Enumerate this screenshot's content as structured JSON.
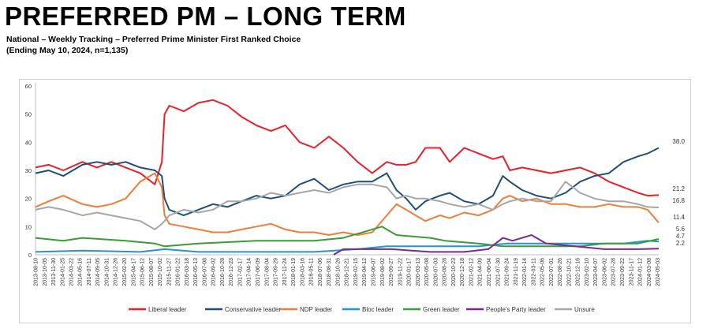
{
  "header": {
    "title": "PREFERRED PM – LONG TERM",
    "subtitle_line1": "National – Weekly Tracking – Preferred Prime Minister First Ranked Choice",
    "subtitle_line2": "(Ending May 10, 2024, n=1,135)"
  },
  "chart_data": {
    "type": "line",
    "ylim": [
      0,
      60
    ],
    "yticks": [
      0,
      10,
      20,
      30,
      40,
      50,
      60
    ],
    "grid": false,
    "legend_position": "bottom",
    "x_start": "2013-08-10",
    "x_end": "2024-05-10",
    "x_tick_labels": [
      "2013-08-10",
      "2013-10-05",
      "2013-11-30",
      "2014-01-25",
      "2014-03-22",
      "2014-05-16",
      "2014-07-11",
      "2014-09-05",
      "2014-10-31",
      "2014-12-26",
      "2015-02-20",
      "2015-04-17",
      "2015-06-12",
      "2015-08-07",
      "2015-10-02",
      "2015-11-27",
      "2016-01-22",
      "2016-03-18",
      "2016-05-13",
      "2016-07-08",
      "2016-09-02",
      "2016-10-28",
      "2016-12-23",
      "2017-02-17",
      "2017-04-14",
      "2017-06-09",
      "2017-08-04",
      "2017-09-29",
      "2017-11-24",
      "2018-01-19",
      "2018-03-16",
      "2018-05-11",
      "2018-07-06",
      "2018-08-31",
      "2018-10-26",
      "2018-12-21",
      "2019-02-15",
      "2019-04-12",
      "2019-06-07",
      "2019-08-02",
      "2019-09-27",
      "2019-11-22",
      "2020-01-17",
      "2020-03-13",
      "2020-05-08",
      "2020-07-03",
      "2020-08-28",
      "2020-10-23",
      "2020-12-18",
      "2021-02-12",
      "2021-04-09",
      "2021-06-04",
      "2021-07-30",
      "2021-09-24",
      "2021-11-19",
      "2022-01-14",
      "2022-03-11",
      "2022-05-06",
      "2022-07-01",
      "2022-08-26",
      "2022-10-21",
      "2022-12-16",
      "2023-02-10",
      "2023-04-07",
      "2023-06-02",
      "2023-07-28",
      "2023-09-22",
      "2023-11-17",
      "2024-01-12",
      "2024-03-08",
      "2024-05-03"
    ],
    "end_labels": [
      "38.0",
      "21.2",
      "16.8",
      "11.4",
      "5.6",
      "4.7",
      "2.2"
    ],
    "series": [
      {
        "name": "Liberal leader",
        "color": "#e8202a",
        "points": [
          [
            "2013-08-10",
            31
          ],
          [
            "2013-11-01",
            32
          ],
          [
            "2014-02-01",
            30
          ],
          [
            "2014-06-01",
            33
          ],
          [
            "2014-09-01",
            31
          ],
          [
            "2014-12-01",
            33
          ],
          [
            "2015-03-01",
            31
          ],
          [
            "2015-06-01",
            29
          ],
          [
            "2015-09-01",
            25
          ],
          [
            "2015-10-15",
            33
          ],
          [
            "2015-11-01",
            50
          ],
          [
            "2015-12-01",
            53
          ],
          [
            "2016-03-01",
            51
          ],
          [
            "2016-06-01",
            54
          ],
          [
            "2016-09-01",
            55
          ],
          [
            "2016-12-01",
            53
          ],
          [
            "2017-03-01",
            49
          ],
          [
            "2017-06-01",
            46
          ],
          [
            "2017-09-01",
            44
          ],
          [
            "2017-12-01",
            46
          ],
          [
            "2018-03-01",
            40
          ],
          [
            "2018-06-01",
            38
          ],
          [
            "2018-09-01",
            42
          ],
          [
            "2018-12-01",
            38
          ],
          [
            "2019-03-01",
            33
          ],
          [
            "2019-06-01",
            29
          ],
          [
            "2019-09-01",
            33
          ],
          [
            "2019-11-01",
            32
          ],
          [
            "2020-01-01",
            32
          ],
          [
            "2020-03-01",
            33
          ],
          [
            "2020-05-01",
            38
          ],
          [
            "2020-08-01",
            38
          ],
          [
            "2020-10-01",
            33
          ],
          [
            "2021-01-01",
            38
          ],
          [
            "2021-04-01",
            36
          ],
          [
            "2021-07-01",
            34
          ],
          [
            "2021-09-01",
            35
          ],
          [
            "2021-10-15",
            30
          ],
          [
            "2022-01-01",
            31
          ],
          [
            "2022-04-01",
            30
          ],
          [
            "2022-07-01",
            29
          ],
          [
            "2022-10-01",
            30
          ],
          [
            "2023-01-01",
            31
          ],
          [
            "2023-04-01",
            29
          ],
          [
            "2023-07-01",
            26
          ],
          [
            "2023-10-01",
            24
          ],
          [
            "2024-01-01",
            22
          ],
          [
            "2024-03-01",
            21
          ],
          [
            "2024-05-10",
            21.2
          ]
        ]
      },
      {
        "name": "Conservative leader",
        "color": "#1f4e79",
        "points": [
          [
            "2013-08-10",
            29
          ],
          [
            "2013-11-01",
            30
          ],
          [
            "2014-02-01",
            28
          ],
          [
            "2014-06-01",
            32
          ],
          [
            "2014-09-01",
            33
          ],
          [
            "2014-12-01",
            32
          ],
          [
            "2015-03-01",
            33
          ],
          [
            "2015-06-01",
            31
          ],
          [
            "2015-09-01",
            30
          ],
          [
            "2015-10-15",
            28
          ],
          [
            "2015-11-01",
            20
          ],
          [
            "2015-12-01",
            16
          ],
          [
            "2016-03-01",
            14
          ],
          [
            "2016-06-01",
            16
          ],
          [
            "2016-09-01",
            18
          ],
          [
            "2016-12-01",
            17
          ],
          [
            "2017-03-01",
            19
          ],
          [
            "2017-06-01",
            21
          ],
          [
            "2017-09-01",
            20
          ],
          [
            "2017-12-01",
            21
          ],
          [
            "2018-03-01",
            25
          ],
          [
            "2018-06-01",
            27
          ],
          [
            "2018-09-01",
            23
          ],
          [
            "2018-12-01",
            25
          ],
          [
            "2019-03-01",
            26
          ],
          [
            "2019-06-01",
            26
          ],
          [
            "2019-09-01",
            29
          ],
          [
            "2019-11-01",
            23
          ],
          [
            "2020-01-01",
            20
          ],
          [
            "2020-03-01",
            16
          ],
          [
            "2020-05-01",
            19
          ],
          [
            "2020-08-01",
            21
          ],
          [
            "2020-10-01",
            22
          ],
          [
            "2021-01-01",
            19
          ],
          [
            "2021-04-01",
            18
          ],
          [
            "2021-07-01",
            21
          ],
          [
            "2021-09-01",
            28
          ],
          [
            "2021-10-15",
            26
          ],
          [
            "2022-01-01",
            23
          ],
          [
            "2022-04-01",
            21
          ],
          [
            "2022-07-01",
            20
          ],
          [
            "2022-10-01",
            22
          ],
          [
            "2023-01-01",
            26
          ],
          [
            "2023-04-01",
            28
          ],
          [
            "2023-07-01",
            29
          ],
          [
            "2023-10-01",
            33
          ],
          [
            "2024-01-01",
            35
          ],
          [
            "2024-03-01",
            36
          ],
          [
            "2024-05-10",
            38.0
          ]
        ]
      },
      {
        "name": "NDP leader",
        "color": "#ef7d3a",
        "points": [
          [
            "2013-08-10",
            17
          ],
          [
            "2013-11-01",
            19
          ],
          [
            "2014-02-01",
            21
          ],
          [
            "2014-06-01",
            18
          ],
          [
            "2014-09-01",
            17
          ],
          [
            "2014-12-01",
            18
          ],
          [
            "2015-03-01",
            20
          ],
          [
            "2015-06-01",
            26
          ],
          [
            "2015-09-01",
            29
          ],
          [
            "2015-10-15",
            24
          ],
          [
            "2015-11-01",
            14
          ],
          [
            "2015-12-01",
            11
          ],
          [
            "2016-03-01",
            10
          ],
          [
            "2016-06-01",
            9
          ],
          [
            "2016-09-01",
            8
          ],
          [
            "2016-12-01",
            8
          ],
          [
            "2017-03-01",
            9
          ],
          [
            "2017-06-01",
            10
          ],
          [
            "2017-09-01",
            11
          ],
          [
            "2017-12-01",
            9
          ],
          [
            "2018-03-01",
            8
          ],
          [
            "2018-06-01",
            8
          ],
          [
            "2018-09-01",
            7
          ],
          [
            "2018-12-01",
            8
          ],
          [
            "2019-03-01",
            7
          ],
          [
            "2019-06-01",
            8
          ],
          [
            "2019-09-01",
            14
          ],
          [
            "2019-11-01",
            18
          ],
          [
            "2020-01-01",
            16
          ],
          [
            "2020-03-01",
            14
          ],
          [
            "2020-05-01",
            12
          ],
          [
            "2020-08-01",
            14
          ],
          [
            "2020-10-01",
            13
          ],
          [
            "2021-01-01",
            15
          ],
          [
            "2021-04-01",
            14
          ],
          [
            "2021-07-01",
            16
          ],
          [
            "2021-09-01",
            20
          ],
          [
            "2021-10-15",
            21
          ],
          [
            "2022-01-01",
            19
          ],
          [
            "2022-04-01",
            20
          ],
          [
            "2022-07-01",
            18
          ],
          [
            "2022-10-01",
            18
          ],
          [
            "2023-01-01",
            17
          ],
          [
            "2023-04-01",
            17
          ],
          [
            "2023-07-01",
            18
          ],
          [
            "2023-10-01",
            17
          ],
          [
            "2024-01-01",
            17
          ],
          [
            "2024-03-01",
            16
          ],
          [
            "2024-05-10",
            11.4
          ]
        ]
      },
      {
        "name": "Bloc leader",
        "color": "#2196d3",
        "points": [
          [
            "2013-08-10",
            1
          ],
          [
            "2014-06-01",
            1.5
          ],
          [
            "2015-06-01",
            1
          ],
          [
            "2015-11-01",
            2
          ],
          [
            "2016-06-01",
            1
          ],
          [
            "2017-06-01",
            1
          ],
          [
            "2018-06-01",
            1
          ],
          [
            "2019-03-01",
            2
          ],
          [
            "2019-09-01",
            3
          ],
          [
            "2020-03-01",
            3
          ],
          [
            "2020-09-01",
            3
          ],
          [
            "2021-04-01",
            3
          ],
          [
            "2021-10-01",
            4
          ],
          [
            "2022-04-01",
            4
          ],
          [
            "2022-10-01",
            4
          ],
          [
            "2023-04-01",
            4
          ],
          [
            "2023-10-01",
            4
          ],
          [
            "2024-03-01",
            5
          ],
          [
            "2024-05-10",
            4.7
          ]
        ]
      },
      {
        "name": "Green leader",
        "color": "#3a9b3a",
        "points": [
          [
            "2013-08-10",
            6
          ],
          [
            "2014-02-01",
            5
          ],
          [
            "2014-06-01",
            6
          ],
          [
            "2015-03-01",
            5
          ],
          [
            "2015-09-01",
            4
          ],
          [
            "2015-11-01",
            3
          ],
          [
            "2016-06-01",
            4
          ],
          [
            "2017-06-01",
            5
          ],
          [
            "2018-06-01",
            5
          ],
          [
            "2018-12-01",
            6
          ],
          [
            "2019-06-01",
            9
          ],
          [
            "2019-08-01",
            10
          ],
          [
            "2019-11-01",
            7
          ],
          [
            "2020-06-01",
            6
          ],
          [
            "2020-09-01",
            5
          ],
          [
            "2021-04-01",
            4
          ],
          [
            "2021-09-01",
            3
          ],
          [
            "2022-06-01",
            3
          ],
          [
            "2023-01-01",
            3
          ],
          [
            "2023-06-01",
            4
          ],
          [
            "2024-01-01",
            4
          ],
          [
            "2024-05-10",
            5.6
          ]
        ]
      },
      {
        "name": "People's Party leader",
        "color": "#7a2b8c",
        "points": [
          [
            "2018-10-01",
            0
          ],
          [
            "2018-12-01",
            2
          ],
          [
            "2019-06-01",
            2
          ],
          [
            "2019-10-01",
            2
          ],
          [
            "2020-06-01",
            1
          ],
          [
            "2021-01-01",
            1
          ],
          [
            "2021-06-01",
            2
          ],
          [
            "2021-09-01",
            6
          ],
          [
            "2021-11-01",
            5
          ],
          [
            "2022-03-01",
            7
          ],
          [
            "2022-06-01",
            4
          ],
          [
            "2022-12-01",
            3
          ],
          [
            "2023-06-01",
            2
          ],
          [
            "2024-01-01",
            2
          ],
          [
            "2024-05-10",
            2.2
          ]
        ]
      },
      {
        "name": "Unsure",
        "color": "#a6a6a6",
        "points": [
          [
            "2013-08-10",
            16
          ],
          [
            "2013-11-01",
            17
          ],
          [
            "2014-02-01",
            16
          ],
          [
            "2014-06-01",
            14
          ],
          [
            "2014-09-01",
            15
          ],
          [
            "2014-12-01",
            14
          ],
          [
            "2015-03-01",
            13
          ],
          [
            "2015-06-01",
            12
          ],
          [
            "2015-09-01",
            9
          ],
          [
            "2015-10-15",
            11
          ],
          [
            "2015-11-01",
            12
          ],
          [
            "2015-12-01",
            14
          ],
          [
            "2016-03-01",
            16
          ],
          [
            "2016-06-01",
            15
          ],
          [
            "2016-09-01",
            16
          ],
          [
            "2016-12-01",
            19
          ],
          [
            "2017-03-01",
            19
          ],
          [
            "2017-06-01",
            20
          ],
          [
            "2017-09-01",
            22
          ],
          [
            "2017-12-01",
            21
          ],
          [
            "2018-03-01",
            22
          ],
          [
            "2018-06-01",
            23
          ],
          [
            "2018-09-01",
            22
          ],
          [
            "2018-12-01",
            24
          ],
          [
            "2019-03-01",
            25
          ],
          [
            "2019-06-01",
            25
          ],
          [
            "2019-09-01",
            24
          ],
          [
            "2019-11-01",
            20
          ],
          [
            "2020-01-01",
            21
          ],
          [
            "2020-03-01",
            20
          ],
          [
            "2020-05-01",
            20
          ],
          [
            "2020-08-01",
            19
          ],
          [
            "2020-10-01",
            18
          ],
          [
            "2021-01-01",
            17
          ],
          [
            "2021-04-01",
            18
          ],
          [
            "2021-07-01",
            16
          ],
          [
            "2021-09-01",
            18
          ],
          [
            "2021-10-15",
            19
          ],
          [
            "2022-01-01",
            20
          ],
          [
            "2022-04-01",
            19
          ],
          [
            "2022-07-01",
            19
          ],
          [
            "2022-10-01",
            26
          ],
          [
            "2023-01-01",
            22
          ],
          [
            "2023-04-01",
            20
          ],
          [
            "2023-07-01",
            19
          ],
          [
            "2023-10-01",
            19
          ],
          [
            "2024-01-01",
            18
          ],
          [
            "2024-03-01",
            17
          ],
          [
            "2024-05-10",
            16.8
          ]
        ]
      }
    ]
  }
}
